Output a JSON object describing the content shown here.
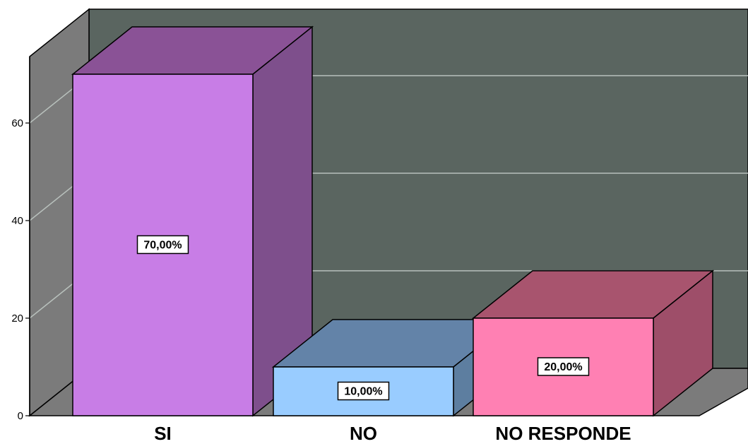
{
  "chart_data": {
    "type": "bar",
    "title": "",
    "xlabel": "",
    "ylabel": "",
    "categories": [
      "SI",
      "NO",
      "NO RESPONDE"
    ],
    "values": [
      70,
      10,
      20
    ],
    "data_labels": [
      "70,00%",
      "10,00%",
      "20,00%"
    ],
    "yticks": [
      0,
      20,
      40,
      60
    ],
    "ylim": [
      0,
      70
    ],
    "grid": true,
    "three_d": true,
    "colors": {
      "front": [
        "#c87de6",
        "#99ccff",
        "#ff80b3"
      ],
      "top": [
        "#8a5296",
        "#6383a8",
        "#a8546e"
      ],
      "side": [
        "#7e4f8c",
        "#5d7ea0",
        "#9e4e69"
      ],
      "back_wall": "#5a6560",
      "left_wall": "#7b7b7b",
      "floor": "#7b7b7b",
      "gridline": "#b8c0bc"
    }
  }
}
